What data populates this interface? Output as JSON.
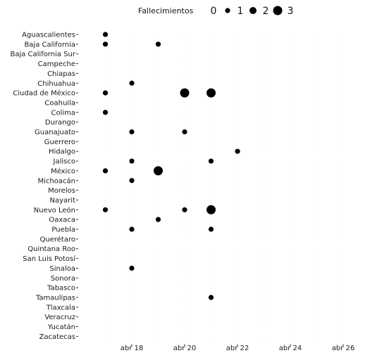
{
  "chart_data": {
    "type": "scatter",
    "legend": {
      "title": "Fallecimientos",
      "placement": "top",
      "sizes": [
        {
          "label": "0",
          "value": 0
        },
        {
          "label": "1",
          "value": 1
        },
        {
          "label": "2",
          "value": 2
        },
        {
          "label": "3",
          "value": 3
        }
      ]
    },
    "point_color": "#000000",
    "grid": true,
    "xlim": [
      "2020-04-16",
      "2020-04-26"
    ],
    "x_ticks": [
      {
        "label": "abr 18",
        "date": "2020-04-18"
      },
      {
        "label": "abr 20",
        "date": "2020-04-20"
      },
      {
        "label": "abr 22",
        "date": "2020-04-22"
      },
      {
        "label": "abr 24",
        "date": "2020-04-24"
      },
      {
        "label": "abr 26",
        "date": "2020-04-26"
      }
    ],
    "categories": [
      "Aguascalientes",
      "Baja California",
      "Baja California Sur",
      "Campeche",
      "Chiapas",
      "Chihuahua",
      "Ciudad de México",
      "Coahuila",
      "Colima",
      "Durango",
      "Guanajuato",
      "Guerrero",
      "Hidalgo",
      "Jalisco",
      "México",
      "Michoacán",
      "Morelos",
      "Nayarit",
      "Nuevo León",
      "Oaxaca",
      "Puebla",
      "Querétaro",
      "Quintana Roo",
      "San Luis Potosí",
      "Sinaloa",
      "Sonora",
      "Tabasco",
      "Tamaulipas",
      "Tlaxcala",
      "Veracruz",
      "Yucatán",
      "Zacatecas"
    ],
    "points": [
      {
        "state": "Aguascalientes",
        "date": "2020-04-17",
        "deaths": 1
      },
      {
        "state": "Baja California",
        "date": "2020-04-17",
        "deaths": 1
      },
      {
        "state": "Baja California",
        "date": "2020-04-19",
        "deaths": 1
      },
      {
        "state": "Chihuahua",
        "date": "2020-04-18",
        "deaths": 1
      },
      {
        "state": "Ciudad de México",
        "date": "2020-04-17",
        "deaths": 1
      },
      {
        "state": "Ciudad de México",
        "date": "2020-04-20",
        "deaths": 3
      },
      {
        "state": "Ciudad de México",
        "date": "2020-04-21",
        "deaths": 3
      },
      {
        "state": "Colima",
        "date": "2020-04-17",
        "deaths": 1
      },
      {
        "state": "Guanajuato",
        "date": "2020-04-18",
        "deaths": 1
      },
      {
        "state": "Guanajuato",
        "date": "2020-04-20",
        "deaths": 1
      },
      {
        "state": "Hidalgo",
        "date": "2020-04-22",
        "deaths": 1
      },
      {
        "state": "Jalisco",
        "date": "2020-04-18",
        "deaths": 1
      },
      {
        "state": "Jalisco",
        "date": "2020-04-21",
        "deaths": 1
      },
      {
        "state": "México",
        "date": "2020-04-17",
        "deaths": 1
      },
      {
        "state": "México",
        "date": "2020-04-19",
        "deaths": 3
      },
      {
        "state": "Michoacán",
        "date": "2020-04-18",
        "deaths": 1
      },
      {
        "state": "Nuevo León",
        "date": "2020-04-17",
        "deaths": 1
      },
      {
        "state": "Nuevo León",
        "date": "2020-04-20",
        "deaths": 1
      },
      {
        "state": "Nuevo León",
        "date": "2020-04-21",
        "deaths": 3
      },
      {
        "state": "Oaxaca",
        "date": "2020-04-19",
        "deaths": 1
      },
      {
        "state": "Puebla",
        "date": "2020-04-18",
        "deaths": 1
      },
      {
        "state": "Puebla",
        "date": "2020-04-21",
        "deaths": 1
      },
      {
        "state": "Sinaloa",
        "date": "2020-04-18",
        "deaths": 1
      },
      {
        "state": "Tamaulipas",
        "date": "2020-04-21",
        "deaths": 1
      }
    ]
  }
}
